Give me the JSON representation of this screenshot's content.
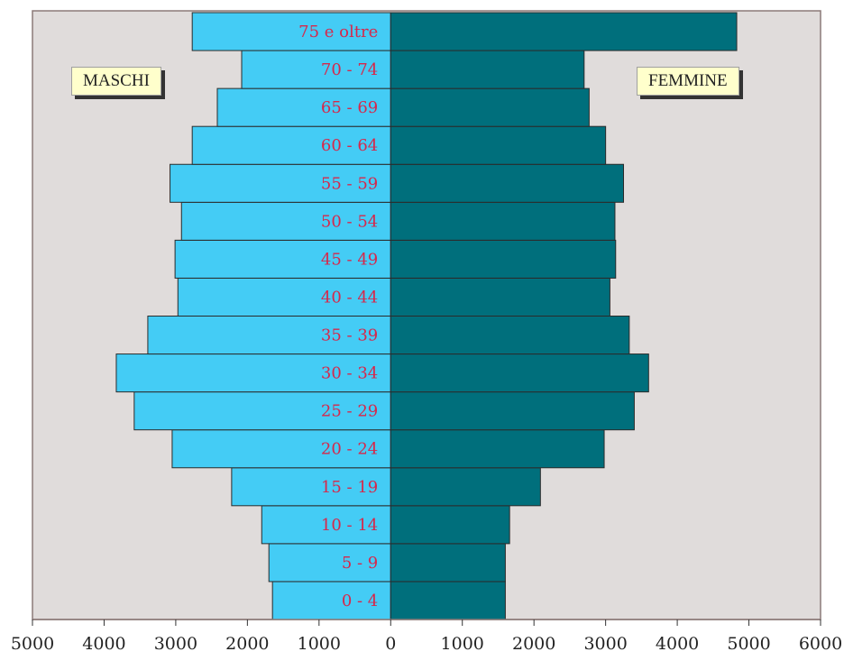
{
  "chart_data": {
    "type": "bar",
    "orientation": "horizontal",
    "subtype": "population-pyramid",
    "categories": [
      "0 - 4",
      "5 - 9",
      "10 - 14",
      "15 - 19",
      "20 - 24",
      "25 - 29",
      "30 - 34",
      "35 - 39",
      "40 - 44",
      "45 - 49",
      "50 - 54",
      "55 - 59",
      "60 - 64",
      "65 - 69",
      "70 - 74",
      "75 e oltre"
    ],
    "series": [
      {
        "name": "MASCHI",
        "side": "left",
        "color": "#44ccf5",
        "values": [
          1650,
          1700,
          1800,
          2220,
          3050,
          3580,
          3830,
          3390,
          2970,
          3010,
          2920,
          3080,
          2770,
          2420,
          2080,
          2770
        ]
      },
      {
        "name": "FEMMINE",
        "side": "right",
        "color": "#006f7c",
        "values": [
          1600,
          1600,
          1660,
          2090,
          2980,
          3400,
          3600,
          3330,
          3060,
          3140,
          3130,
          3250,
          3000,
          2770,
          2700,
          4830
        ]
      }
    ],
    "x_ticks": [
      "5000",
      "4000",
      "3000",
      "2000",
      "1000",
      "0",
      "1000",
      "2000",
      "3000",
      "4000",
      "5000",
      "6000"
    ],
    "xlim": [
      -5000,
      6000
    ],
    "grid": false,
    "legend_placement": "top-left / top-right",
    "plot_background": "#e0dcdb",
    "category_label_color": "#d6284b"
  }
}
